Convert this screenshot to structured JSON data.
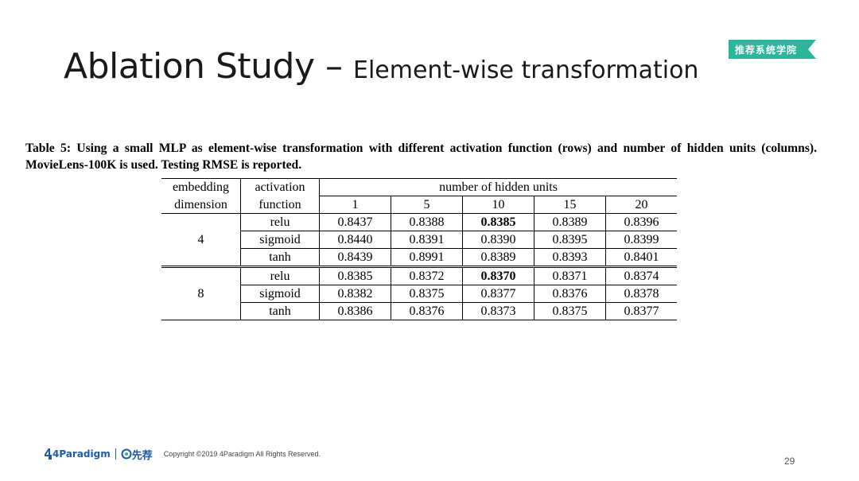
{
  "slide": {
    "title_main": "Ablation Study – ",
    "title_sub": "Element-wise transformation",
    "badge": "推荐系统学院",
    "page_number": "29"
  },
  "caption": "Table 5: Using a small MLP as element-wise transformation with different activation function (rows) and number of hidden units (columns). MovieLens-100K is used. Testing RMSE is reported.",
  "table": {
    "header": {
      "embedding_l1": "embedding",
      "embedding_l2": "dimension",
      "activation_l1": "activation",
      "activation_l2": "function",
      "hidden_units": "number of hidden units",
      "columns": [
        "1",
        "5",
        "10",
        "15",
        "20"
      ]
    },
    "groups": [
      {
        "dimension": "4",
        "rows": [
          {
            "function": "relu",
            "values": [
              "0.8437",
              "0.8388",
              "0.8385",
              "0.8389",
              "0.8396"
            ],
            "bold_index": 2
          },
          {
            "function": "sigmoid",
            "values": [
              "0.8440",
              "0.8391",
              "0.8390",
              "0.8395",
              "0.8399"
            ]
          },
          {
            "function": "tanh",
            "values": [
              "0.8439",
              "0.8991",
              "0.8389",
              "0.8393",
              "0.8401"
            ]
          }
        ]
      },
      {
        "dimension": "8",
        "rows": [
          {
            "function": "relu",
            "values": [
              "0.8385",
              "0.8372",
              "0.8370",
              "0.8371",
              "0.8374"
            ],
            "bold_index": 2
          },
          {
            "function": "sigmoid",
            "values": [
              "0.8382",
              "0.8375",
              "0.8377",
              "0.8376",
              "0.8378"
            ]
          },
          {
            "function": "tanh",
            "values": [
              "0.8386",
              "0.8376",
              "0.8373",
              "0.8375",
              "0.8377"
            ]
          }
        ]
      }
    ]
  },
  "footer": {
    "logo_text": "4Paradigm",
    "logo2_text": "先荐",
    "copyright": "Copyright ©2019 4Paradigm All Rights Reserved."
  },
  "colors": {
    "badge": "#2bb59a",
    "brand": "#1e5aa8"
  }
}
